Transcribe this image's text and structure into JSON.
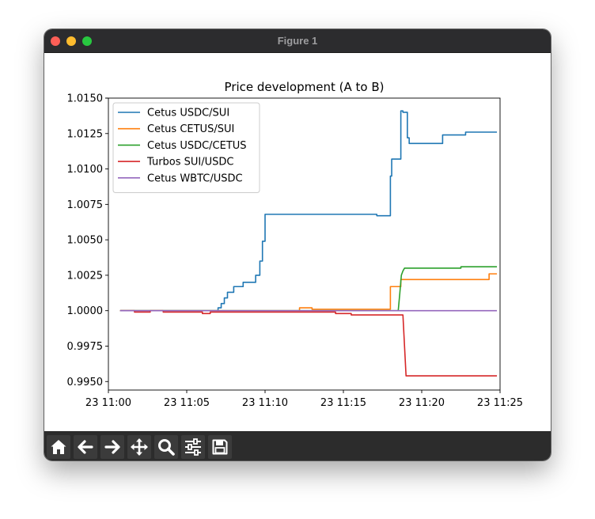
{
  "window": {
    "title": "Figure 1"
  },
  "toolbar": {
    "buttons": [
      {
        "name": "home",
        "icon": "home-icon"
      },
      {
        "name": "back",
        "icon": "arrow-left-icon"
      },
      {
        "name": "forward",
        "icon": "arrow-right-icon"
      },
      {
        "name": "pan",
        "icon": "move-icon"
      },
      {
        "name": "zoom",
        "icon": "search-icon"
      },
      {
        "name": "configure-subplots",
        "icon": "sliders-icon"
      },
      {
        "name": "save",
        "icon": "save-icon"
      }
    ]
  },
  "chart_data": {
    "type": "line",
    "title": "Price development (A to B)",
    "xlabel": "",
    "ylabel": "",
    "x_ticks": [
      "23 11:00",
      "23 11:05",
      "23 11:10",
      "23 11:15",
      "23 11:20",
      "23 11:25"
    ],
    "y_ticks": [
      "0.9950",
      "0.9975",
      "1.0000",
      "1.0025",
      "1.0050",
      "1.0075",
      "1.0100",
      "1.0125",
      "1.0150"
    ],
    "xlim": [
      "23 11:00",
      "23 11:25"
    ],
    "ylim": [
      0.9944,
      1.015
    ],
    "legend_position": "upper-left",
    "grid": false,
    "series": [
      {
        "name": "Cetus USDC/SUI",
        "color": "#1f77b4",
        "points": [
          [
            "23 11:00:45",
            1.0
          ],
          [
            "23 11:07:00",
            1.0
          ],
          [
            "23 11:07:00",
            1.0002
          ],
          [
            "23 11:07:12",
            1.0002
          ],
          [
            "23 11:07:12",
            1.0005
          ],
          [
            "23 11:07:24",
            1.0005
          ],
          [
            "23 11:07:24",
            1.0009
          ],
          [
            "23 11:07:36",
            1.0009
          ],
          [
            "23 11:07:36",
            1.0013
          ],
          [
            "23 11:08:00",
            1.0013
          ],
          [
            "23 11:08:00",
            1.0017
          ],
          [
            "23 11:08:36",
            1.0017
          ],
          [
            "23 11:08:36",
            1.002
          ],
          [
            "23 11:09:24",
            1.002
          ],
          [
            "23 11:09:24",
            1.0025
          ],
          [
            "23 11:09:40",
            1.0025
          ],
          [
            "23 11:09:40",
            1.0035
          ],
          [
            "23 11:09:50",
            1.0035
          ],
          [
            "23 11:09:50",
            1.0049
          ],
          [
            "23 11:10:00",
            1.0049
          ],
          [
            "23 11:10:00",
            1.0068
          ],
          [
            "23 11:17:08",
            1.0068
          ],
          [
            "23 11:17:08",
            1.0067
          ],
          [
            "23 11:18:00",
            1.0067
          ],
          [
            "23 11:18:00",
            1.0095
          ],
          [
            "23 11:18:05",
            1.0095
          ],
          [
            "23 11:18:05",
            1.0107
          ],
          [
            "23 11:18:40",
            1.0107
          ],
          [
            "23 11:18:40",
            1.0141
          ],
          [
            "23 11:18:48",
            1.0141
          ],
          [
            "23 11:18:48",
            1.014
          ],
          [
            "23 11:19:05",
            1.014
          ],
          [
            "23 11:19:05",
            1.0122
          ],
          [
            "23 11:19:12",
            1.0122
          ],
          [
            "23 11:19:12",
            1.0118
          ],
          [
            "23 11:21:20",
            1.0118
          ],
          [
            "23 11:21:20",
            1.0124
          ],
          [
            "23 11:22:48",
            1.0124
          ],
          [
            "23 11:22:48",
            1.0126
          ],
          [
            "23 11:24:48",
            1.0126
          ]
        ]
      },
      {
        "name": "Cetus CETUS/SUI",
        "color": "#ff7f0e",
        "points": [
          [
            "23 11:00:45",
            1.0
          ],
          [
            "23 11:12:12",
            1.0
          ],
          [
            "23 11:12:12",
            1.0002
          ],
          [
            "23 11:13:00",
            1.0002
          ],
          [
            "23 11:13:00",
            1.0001
          ],
          [
            "23 11:18:00",
            1.0001
          ],
          [
            "23 11:18:00",
            1.0017
          ],
          [
            "23 11:18:40",
            1.0017
          ],
          [
            "23 11:18:40",
            1.0022
          ],
          [
            "23 11:24:18",
            1.0022
          ],
          [
            "23 11:24:18",
            1.0026
          ],
          [
            "23 11:24:48",
            1.0026
          ]
        ]
      },
      {
        "name": "Cetus USDC/CETUS",
        "color": "#2ca02c",
        "points": [
          [
            "23 11:00:45",
            1.0
          ],
          [
            "23 11:18:30",
            1.0
          ],
          [
            "23 11:18:36",
            1.0012
          ],
          [
            "23 11:18:42",
            1.0025
          ],
          [
            "23 11:18:48",
            1.0028
          ],
          [
            "23 11:18:54",
            1.003
          ],
          [
            "23 11:22:30",
            1.003
          ],
          [
            "23 11:22:30",
            1.0031
          ],
          [
            "23 11:24:48",
            1.0031
          ]
        ]
      },
      {
        "name": "Turbos SUI/USDC",
        "color": "#d62728",
        "points": [
          [
            "23 11:00:45",
            1.0
          ],
          [
            "23 11:01:40",
            1.0
          ],
          [
            "23 11:01:40",
            0.9999
          ],
          [
            "23 11:02:40",
            0.9999
          ],
          [
            "23 11:02:40",
            1.0
          ],
          [
            "23 11:03:30",
            1.0
          ],
          [
            "23 11:03:30",
            0.9999
          ],
          [
            "23 11:06:00",
            0.9999
          ],
          [
            "23 11:06:00",
            0.9998
          ],
          [
            "23 11:06:30",
            0.9998
          ],
          [
            "23 11:06:30",
            0.9999
          ],
          [
            "23 11:14:30",
            0.9999
          ],
          [
            "23 11:14:30",
            0.9998
          ],
          [
            "23 11:15:30",
            0.9998
          ],
          [
            "23 11:15:30",
            0.9997
          ],
          [
            "23 11:18:48",
            0.9997
          ],
          [
            "23 11:19:00",
            0.9954
          ],
          [
            "23 11:24:48",
            0.9954
          ]
        ]
      },
      {
        "name": "Cetus WBTC/USDC",
        "color": "#9467bd",
        "points": [
          [
            "23 11:00:45",
            1.0
          ],
          [
            "23 11:24:48",
            1.0
          ]
        ]
      }
    ]
  }
}
